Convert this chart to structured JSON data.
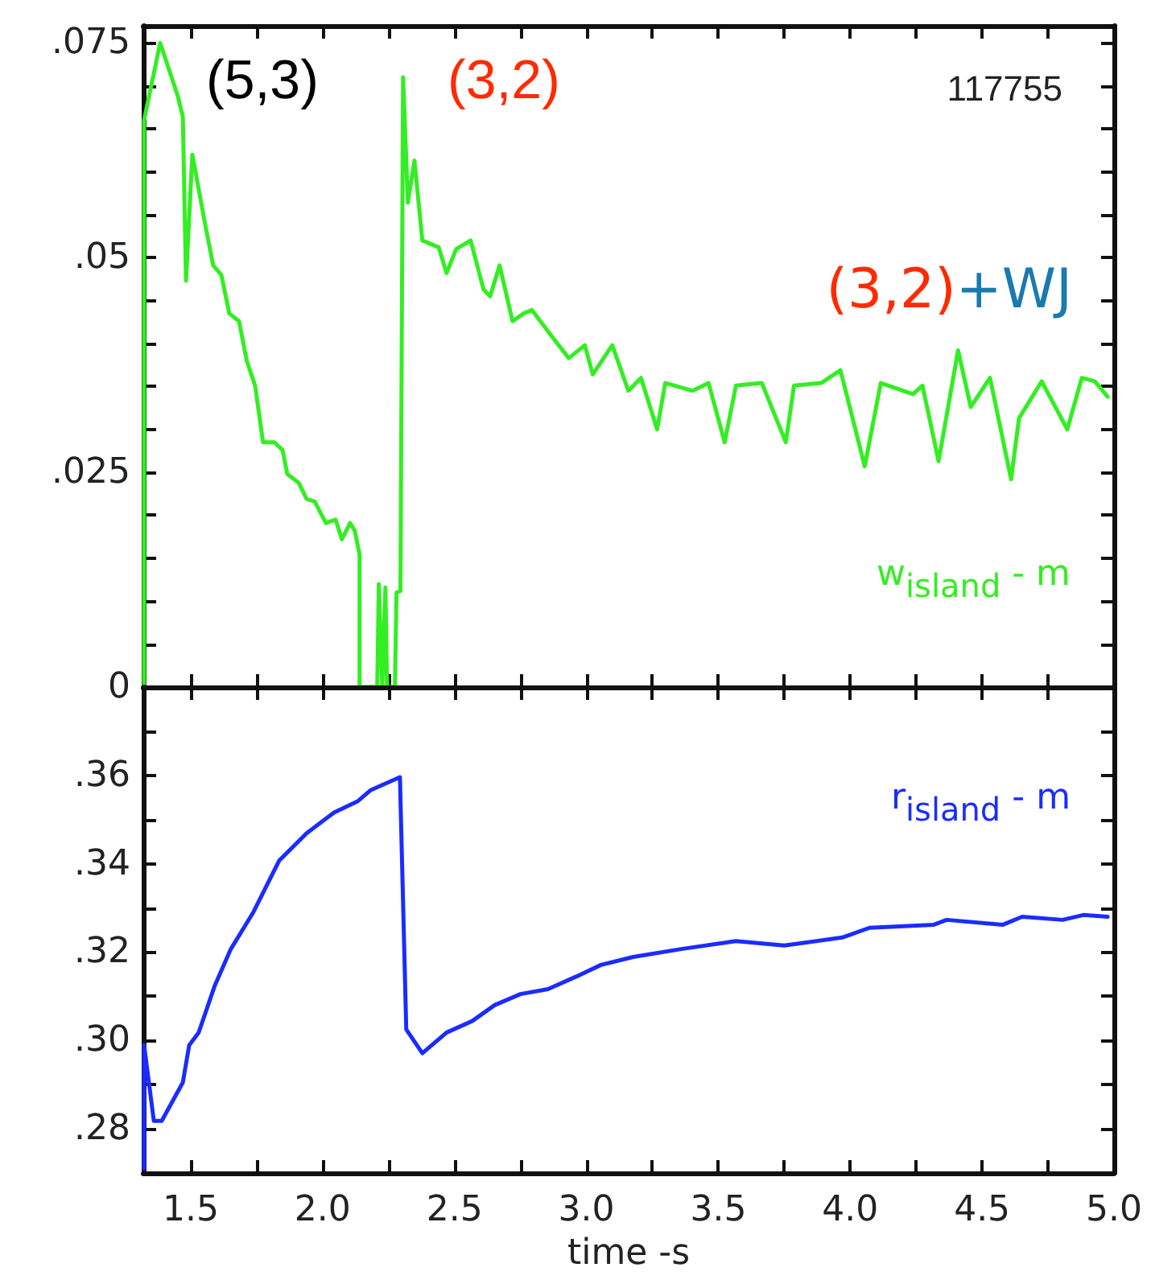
{
  "chart_data": [
    {
      "type": "line",
      "annotations": [
        "(5,3)",
        "(3,2)",
        "(3,2)+WJ",
        "117755"
      ],
      "xlim": [
        1.32,
        5.0
      ],
      "xticks": [
        1.5,
        1.75,
        2,
        2.25,
        2.5,
        2.75,
        3,
        3.25,
        3.5,
        3.75,
        4,
        4.25,
        4.5,
        4.75,
        5
      ],
      "ylim": [
        0,
        0.077
      ],
      "yticks": [
        0,
        {
          "value": 0.005,
          "label": null
        },
        {
          "value": 0.01,
          "label": null
        },
        {
          "value": 0.015,
          "label": null
        },
        {
          "value": 0.02,
          "label": null
        },
        {
          "value": 0.025,
          "label": ".025"
        },
        {
          "value": 0.03,
          "label": null
        },
        {
          "value": 0.035,
          "label": null
        },
        {
          "value": 0.04,
          "label": null
        },
        {
          "value": 0.045,
          "label": null
        },
        {
          "value": 0.05,
          "label": ".05"
        },
        {
          "value": 0.055,
          "label": null
        },
        {
          "value": 0.06,
          "label": null
        },
        {
          "value": 0.065,
          "label": null
        },
        {
          "value": 0.07,
          "label": null
        },
        {
          "value": 0.075,
          "label": ".075"
        }
      ],
      "tick_labels": "y",
      "marker": "none",
      "series": [
        {
          "name": "w$_{island}$ - m",
          "color": "#33ee22",
          "x": [
            1.323,
            1.323,
            1.384,
            1.41,
            1.451,
            1.47,
            1.482,
            1.506,
            1.555,
            1.585,
            1.616,
            1.646,
            1.683,
            1.713,
            1.744,
            1.774,
            1.817,
            1.848,
            1.866,
            1.909,
            1.939,
            1.97,
            2.012,
            2.049,
            2.073,
            2.104,
            2.122,
            2.14,
            2.14,
            2.207,
            2.213,
            2.226,
            2.238,
            2.244,
            2.274,
            2.28,
            2.295,
            2.305,
            2.323,
            2.348,
            2.378,
            2.409,
            2.44,
            2.47,
            2.506,
            2.561,
            2.61,
            2.635,
            2.671,
            2.72,
            2.762,
            2.793,
            2.872,
            2.933,
            2.994,
            3.024,
            3.098,
            3.159,
            3.207,
            3.268,
            3.299,
            3.402,
            3.463,
            3.524,
            3.567,
            3.665,
            3.756,
            3.787,
            3.89,
            3.963,
            4.055,
            4.116,
            4.238,
            4.274,
            4.335,
            4.409,
            4.457,
            4.53,
            4.61,
            4.64,
            4.726,
            4.823,
            4.878,
            4.927,
            4.976
          ],
          "values": [
            0,
            0.066,
            0.075,
            0.0726,
            0.0688,
            0.0664,
            0.0473,
            0.062,
            0.0538,
            0.0491,
            0.048,
            0.0435,
            0.0426,
            0.0379,
            0.0351,
            0.0285,
            0.0285,
            0.0276,
            0.0248,
            0.0238,
            0.0219,
            0.0216,
            0.0191,
            0.0195,
            0.0172,
            0.0191,
            0.0182,
            0.0154,
            0,
            0,
            0.012,
            0,
            0.0116,
            0,
            0,
            0.011,
            0.0112,
            0.071,
            0.0564,
            0.0613,
            0.052,
            0.0516,
            0.0512,
            0.0482,
            0.051,
            0.052,
            0.0463,
            0.0455,
            0.0491,
            0.0426,
            0.0435,
            0.0439,
            0.0407,
            0.0383,
            0.0398,
            0.0364,
            0.0398,
            0.0345,
            0.036,
            0.03,
            0.0354,
            0.0345,
            0.0354,
            0.0285,
            0.0351,
            0.0354,
            0.0285,
            0.0351,
            0.0354,
            0.0369,
            0.0257,
            0.0354,
            0.0341,
            0.0351,
            0.0263,
            0.0392,
            0.0326,
            0.036,
            0.0242,
            0.0313,
            0.0356,
            0.03,
            0.036,
            0.0356,
            0.0338
          ]
        }
      ]
    },
    {
      "type": "line",
      "xlabel": "time -s",
      "xlim": [
        1.32,
        5.0
      ],
      "xticks": [
        1.5,
        {
          "value": 1.75,
          "label": null
        },
        {
          "value": 2.0,
          "label": "2.0"
        },
        {
          "value": 2.25,
          "label": null
        },
        2.5,
        {
          "value": 2.75,
          "label": null
        },
        {
          "value": 3.0,
          "label": "3.0"
        },
        {
          "value": 3.25,
          "label": null
        },
        3.5,
        {
          "value": 3.75,
          "label": null
        },
        {
          "value": 4.0,
          "label": "4.0"
        },
        {
          "value": 4.25,
          "label": null
        },
        4.5,
        {
          "value": 4.75,
          "label": null
        },
        {
          "value": 5.0,
          "label": "5.0"
        }
      ],
      "ylim": [
        0.27,
        0.38
      ],
      "yticks": [
        {
          "value": 0.28,
          "label": ".28"
        },
        {
          "value": 0.29,
          "label": null
        },
        {
          "value": 0.3,
          "label": ".30"
        },
        {
          "value": 0.31,
          "label": null
        },
        {
          "value": 0.32,
          "label": ".32"
        },
        {
          "value": 0.33,
          "label": null
        },
        {
          "value": 0.34,
          "label": ".34"
        },
        {
          "value": 0.35,
          "label": null
        },
        {
          "value": 0.36,
          "label": ".36"
        },
        {
          "value": 0.37,
          "label": null
        }
      ],
      "marker": "none",
      "series": [
        {
          "name": "r$_{island}$ - m",
          "color": "#1a2cff",
          "x": [
            1.323,
            1.323,
            1.36,
            1.39,
            1.47,
            1.494,
            1.53,
            1.591,
            1.652,
            1.738,
            1.835,
            1.939,
            2.043,
            2.134,
            2.183,
            2.293,
            2.317,
            2.378,
            2.47,
            2.567,
            2.652,
            2.75,
            2.854,
            2.963,
            3.055,
            3.177,
            3.36,
            3.567,
            3.75,
            3.97,
            4.073,
            4.317,
            4.366,
            4.579,
            4.652,
            4.805,
            4.884,
            4.976
          ],
          "values": [
            0.271,
            0.299,
            0.2818,
            0.2818,
            0.2905,
            0.2989,
            0.3018,
            0.3124,
            0.3207,
            0.3291,
            0.3407,
            0.3469,
            0.3516,
            0.3542,
            0.3567,
            0.3596,
            0.3025,
            0.2971,
            0.3018,
            0.3044,
            0.308,
            0.3105,
            0.3116,
            0.3145,
            0.3171,
            0.3189,
            0.3207,
            0.3225,
            0.3215,
            0.3233,
            0.3255,
            0.3262,
            0.3273,
            0.3262,
            0.328,
            0.3273,
            0.3284,
            0.328
          ]
        }
      ]
    }
  ]
}
